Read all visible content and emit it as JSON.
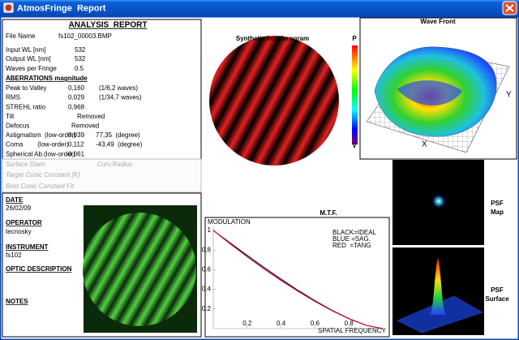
{
  "window": {
    "title": "AtmosFringe  Report"
  },
  "report": {
    "title": "ANALYSIS  REPORT",
    "info": [
      [
        "File Name",
        "fs102_00003.BMP"
      ],
      [
        "Input WL [nm]",
        "532"
      ],
      [
        "Output WL [nm]",
        "532"
      ],
      [
        "Waves per Fringe",
        "0.5"
      ]
    ],
    "aberrations_heading": "ABERRATIONS magnitude",
    "aberrations": [
      [
        "Peak to Valley",
        "0,160",
        "(1/6,2 waves)"
      ],
      [
        "RMS",
        "0,029",
        "(1/34,7 waves)"
      ],
      [
        "STREHL ratio",
        "0,968"
      ],
      [
        "Tilt",
        "Removed"
      ],
      [
        "Defocus",
        "Removed"
      ],
      [
        "Astigmatism  (low-order)",
        "0,039",
        "77,35  (degree)"
      ],
      [
        "Coma        (low-order)",
        "0,112",
        "-43,49  (degree)"
      ],
      [
        "Spherical Ab.(low-order)",
        "0,061"
      ]
    ],
    "fit": [
      "Surface Diam",
      "Curv.Radius",
      "Target Conic Constant [K]",
      "Best Conic Constant Fit"
    ]
  },
  "notes": {
    "date_label": "DATE",
    "date": "26/02/09",
    "operator_label": "OPERATOR",
    "operator": "tecnosky",
    "instrument_label": "INSTRUMENT",
    "instrument": "fs102",
    "optic_description_label": "OPTIC DESCRIPTION",
    "notes_label": "NOTES"
  },
  "interferogram": {
    "title": "Synthetic Interferogram",
    "scale_top": "P",
    "scale_bottom": "V"
  },
  "wavefront": {
    "title": "Wave Front",
    "y_label": "Y",
    "x_label": "X"
  },
  "psf": {
    "map_label": [
      "PSF",
      "Map"
    ],
    "surface_label": [
      "PSF",
      "Surface"
    ]
  },
  "chart_data": {
    "type": "line",
    "title": "M.T.F.",
    "y_label": "MODULATION",
    "x_label": "SPATIAL FREQUENCY",
    "xlim": [
      0,
      1
    ],
    "ylim": [
      0,
      1
    ],
    "xticks": [
      0.2,
      0.4,
      0.6,
      0.8
    ],
    "yticks": [
      0.2,
      0.4,
      0.6,
      0.8,
      1
    ],
    "x": [
      0,
      0.1,
      0.2,
      0.3,
      0.4,
      0.5,
      0.6,
      0.7,
      0.8,
      0.9,
      1
    ],
    "series": [
      {
        "name": "BLACK=IDEAL",
        "color": "#000000",
        "values": [
          1,
          0.873,
          0.747,
          0.624,
          0.505,
          0.391,
          0.285,
          0.188,
          0.104,
          0.036,
          0
        ]
      },
      {
        "name": "BLUE =SAG.",
        "color": "#0000ff",
        "values": [
          1,
          0.862,
          0.732,
          0.607,
          0.49,
          0.38,
          0.277,
          0.183,
          0.101,
          0.035,
          0
        ]
      },
      {
        "name": "RED  =TANG",
        "color": "#ff0000",
        "values": [
          1,
          0.866,
          0.737,
          0.612,
          0.495,
          0.384,
          0.279,
          0.184,
          0.102,
          0.035,
          0
        ]
      }
    ]
  }
}
